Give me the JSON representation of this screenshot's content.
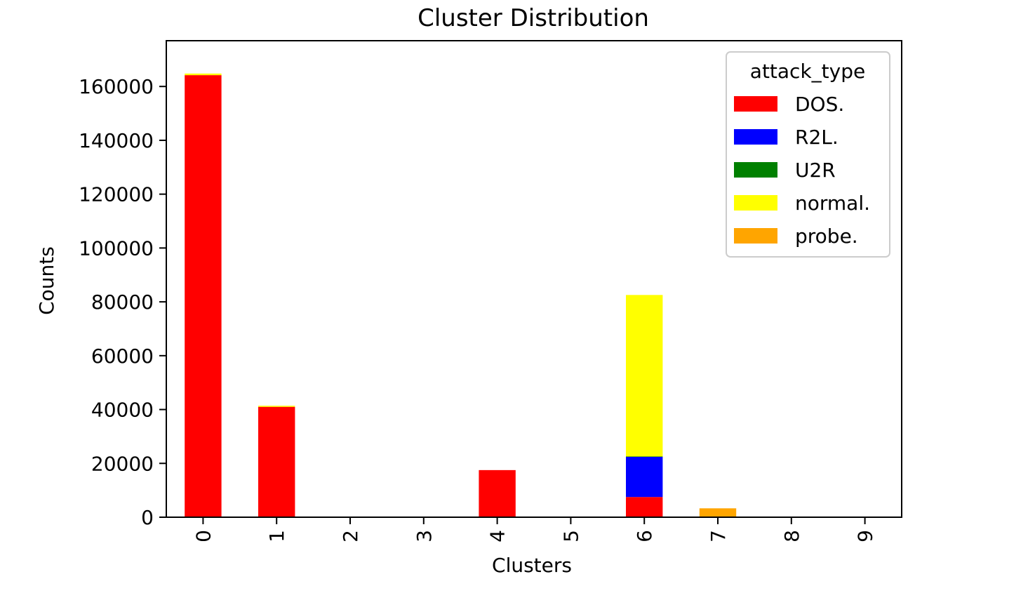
{
  "chart_data": {
    "type": "bar",
    "stacked": true,
    "title": "Cluster Distribution",
    "xlabel": "Clusters",
    "ylabel": "Counts",
    "categories": [
      "0",
      "1",
      "2",
      "3",
      "4",
      "5",
      "6",
      "7",
      "8",
      "9"
    ],
    "yticks": [
      "0",
      "20000",
      "40000",
      "60000",
      "80000",
      "100000",
      "120000",
      "140000",
      "160000"
    ],
    "ylim": [
      0,
      177000
    ],
    "grid": false,
    "legend": {
      "title": "attack_type",
      "position": "top-right"
    },
    "series": [
      {
        "name": "DOS.",
        "color": "#ff0000",
        "values": [
          164200,
          41000,
          0,
          0,
          17500,
          0,
          7500,
          0,
          0,
          0
        ]
      },
      {
        "name": "R2L.",
        "color": "#0000ff",
        "values": [
          0,
          0,
          0,
          0,
          0,
          0,
          15000,
          0,
          0,
          0
        ]
      },
      {
        "name": "U2R",
        "color": "#008000",
        "values": [
          0,
          0,
          0,
          0,
          0,
          0,
          50,
          0,
          0,
          0
        ]
      },
      {
        "name": "normal.",
        "color": "#ffff00",
        "values": [
          600,
          400,
          0,
          0,
          0,
          0,
          60000,
          0,
          0,
          0
        ]
      },
      {
        "name": "probe.",
        "color": "#ffa500",
        "values": [
          0,
          0,
          0,
          0,
          0,
          0,
          0,
          3300,
          0,
          0
        ]
      }
    ]
  }
}
